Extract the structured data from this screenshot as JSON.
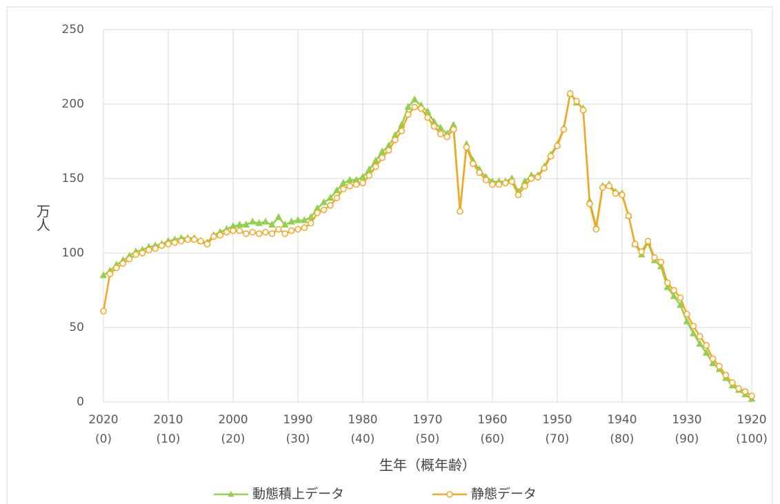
{
  "chart_data": {
    "type": "line",
    "xlabel": "生年（概年齢）",
    "ylabel": "万人",
    "x": [
      2020,
      2019,
      2018,
      2017,
      2016,
      2015,
      2014,
      2013,
      2012,
      2011,
      2010,
      2009,
      2008,
      2007,
      2006,
      2005,
      2004,
      2003,
      2002,
      2001,
      2000,
      1999,
      1998,
      1997,
      1996,
      1995,
      1994,
      1993,
      1992,
      1991,
      1990,
      1989,
      1988,
      1987,
      1986,
      1985,
      1984,
      1983,
      1982,
      1981,
      1980,
      1979,
      1978,
      1977,
      1976,
      1975,
      1974,
      1973,
      1972,
      1971,
      1970,
      1969,
      1968,
      1967,
      1966,
      1965,
      1964,
      1963,
      1962,
      1961,
      1960,
      1959,
      1958,
      1957,
      1956,
      1955,
      1954,
      1953,
      1952,
      1951,
      1950,
      1949,
      1948,
      1947,
      1946,
      1945,
      1944,
      1943,
      1942,
      1941,
      1940,
      1939,
      1938,
      1937,
      1936,
      1935,
      1934,
      1933,
      1932,
      1931,
      1930,
      1929,
      1928,
      1927,
      1926,
      1925,
      1924,
      1923,
      1922,
      1921,
      1920
    ],
    "series": [
      {
        "name": "動態積上データ",
        "color": "#92d050",
        "marker": "triangle",
        "values": [
          85,
          88,
          92,
          95,
          98,
          101,
          102,
          104,
          105,
          106,
          108,
          109,
          110,
          110,
          110,
          108,
          107,
          112,
          114,
          116,
          118,
          119,
          119,
          121,
          120,
          121,
          119,
          124,
          119,
          121,
          122,
          122,
          124,
          130,
          134,
          137,
          142,
          147,
          149,
          149,
          151,
          156,
          162,
          168,
          172,
          179,
          186,
          198,
          203,
          199,
          195,
          188,
          184,
          180,
          186,
          129,
          173,
          162,
          156,
          151,
          148,
          148,
          148,
          150,
          141,
          148,
          152,
          152,
          158,
          166,
          173,
          184,
          207,
          201,
          197,
          135,
          118,
          145,
          146,
          141,
          140,
          125,
          106,
          99,
          107,
          95,
          91,
          77,
          71,
          65,
          54,
          46,
          39,
          33,
          26,
          22,
          16,
          11,
          8,
          5,
          2
        ]
      },
      {
        "name": "静態データ",
        "color": "#f5a623",
        "marker": "circle",
        "values": [
          61,
          86,
          90,
          93,
          96,
          99,
          100,
          102,
          103,
          105,
          106,
          107,
          108,
          109,
          109,
          108,
          106,
          111,
          112,
          114,
          115,
          115,
          113,
          114,
          113,
          114,
          113,
          116,
          113,
          115,
          116,
          117,
          120,
          127,
          129,
          132,
          137,
          143,
          145,
          146,
          147,
          152,
          158,
          164,
          169,
          176,
          182,
          193,
          198,
          197,
          191,
          185,
          180,
          178,
          183,
          128,
          171,
          160,
          154,
          149,
          146,
          146,
          147,
          148,
          139,
          145,
          150,
          151,
          157,
          165,
          172,
          183,
          207,
          202,
          196,
          133,
          116,
          144,
          145,
          140,
          139,
          125,
          106,
          101,
          108,
          97,
          94,
          80,
          75,
          70,
          59,
          51,
          44,
          38,
          29,
          24,
          18,
          13,
          9,
          7,
          4
        ]
      }
    ],
    "xlim": [
      2020,
      1920
    ],
    "xticks": [
      {
        "value": 2020,
        "label": "2020\n(0)"
      },
      {
        "value": 2010,
        "label": "2010\n(10)"
      },
      {
        "value": 2000,
        "label": "2000\n(20)"
      },
      {
        "value": 1990,
        "label": "1990\n(30)"
      },
      {
        "value": 1980,
        "label": "1980\n(40)"
      },
      {
        "value": 1970,
        "label": "1970\n(50)"
      },
      {
        "value": 1960,
        "label": "1960\n(60)"
      },
      {
        "value": 1950,
        "label": "1950\n(70)"
      },
      {
        "value": 1940,
        "label": "1940\n(80)"
      },
      {
        "value": 1930,
        "label": "1930\n(90)"
      },
      {
        "value": 1920,
        "label": "1920\n(100)"
      }
    ],
    "ylim": [
      0,
      250
    ],
    "yticks": [
      0,
      50,
      100,
      150,
      200,
      250
    ],
    "grid": true,
    "legend": "bottom"
  }
}
